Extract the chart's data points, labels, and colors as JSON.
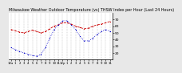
{
  "title": "Milwaukee Weather Outdoor Temperature (vs) THSW Index per Hour (Last 24 Hours)",
  "title_fontsize": 3.5,
  "background_color": "#e8e8e8",
  "plot_bg_color": "#ffffff",
  "grid_color": "#aaaaaa",
  "hours": [
    0,
    1,
    2,
    3,
    4,
    5,
    6,
    7,
    8,
    9,
    10,
    11,
    12,
    13,
    14,
    15,
    16,
    17,
    18,
    19,
    20,
    21,
    22,
    23
  ],
  "temp": [
    55,
    53,
    51,
    50,
    52,
    54,
    52,
    50,
    52,
    56,
    60,
    62,
    65,
    65,
    63,
    60,
    58,
    56,
    57,
    60,
    62,
    63,
    65,
    67
  ],
  "thsw": [
    28,
    25,
    22,
    20,
    18,
    16,
    15,
    18,
    28,
    42,
    55,
    62,
    68,
    68,
    62,
    55,
    45,
    38,
    38,
    42,
    48,
    52,
    55,
    52
  ],
  "temp_color": "#cc0000",
  "thsw_color": "#0000cc",
  "ylim_min": 10,
  "ylim_max": 80,
  "yticks": [
    20,
    30,
    40,
    50,
    60,
    70
  ],
  "ytick_labels": [
    "20",
    "30",
    "40",
    "50",
    "60",
    "70"
  ],
  "ytick_fontsize": 3.2,
  "xtick_fontsize": 2.8,
  "x_labels": [
    "12a",
    "1",
    "2",
    "3",
    "4",
    "5",
    "6",
    "7",
    "8",
    "9",
    "10",
    "11",
    "12p",
    "1",
    "2",
    "3",
    "4",
    "5",
    "6",
    "7",
    "8",
    "9",
    "10",
    "11"
  ],
  "marker_size": 1.8,
  "line_width": 0.6,
  "dot_size": 2.0
}
